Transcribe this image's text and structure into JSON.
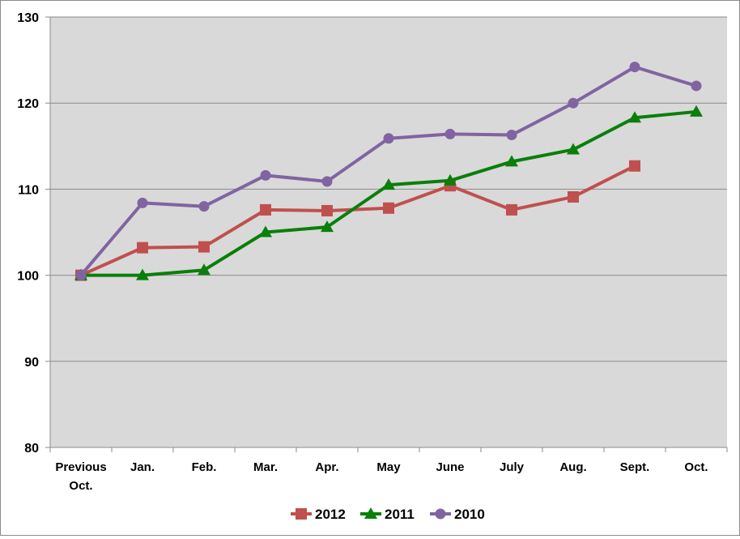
{
  "chart_data": {
    "type": "line",
    "title": "",
    "xlabel": "",
    "ylabel": "",
    "categories": [
      [
        "Previous",
        "Oct."
      ],
      [
        "Jan."
      ],
      [
        "Feb."
      ],
      [
        "Mar."
      ],
      [
        "Apr."
      ],
      [
        "May"
      ],
      [
        "June"
      ],
      [
        "July"
      ],
      [
        "Aug."
      ],
      [
        "Sept."
      ],
      [
        "Oct."
      ]
    ],
    "ylim": [
      80,
      130
    ],
    "yticks": [
      80,
      90,
      100,
      110,
      120,
      130
    ],
    "grid": true,
    "legend_position": "bottom",
    "series": [
      {
        "name": "2012",
        "color": "#c0504d",
        "marker": "square",
        "values": [
          100,
          103.2,
          103.3,
          107.6,
          107.5,
          107.8,
          110.4,
          107.6,
          109.1,
          112.7,
          null
        ]
      },
      {
        "name": "2011",
        "color": "#0a7f0a",
        "marker": "triangle",
        "values": [
          100,
          100,
          100.6,
          105.0,
          105.6,
          110.5,
          111.0,
          113.2,
          114.6,
          118.3,
          119.0
        ]
      },
      {
        "name": "2010",
        "color": "#8064a2",
        "marker": "circle",
        "values": [
          100,
          108.4,
          108.0,
          111.6,
          110.9,
          115.9,
          116.4,
          116.3,
          120.0,
          124.2,
          122.0
        ]
      }
    ]
  }
}
